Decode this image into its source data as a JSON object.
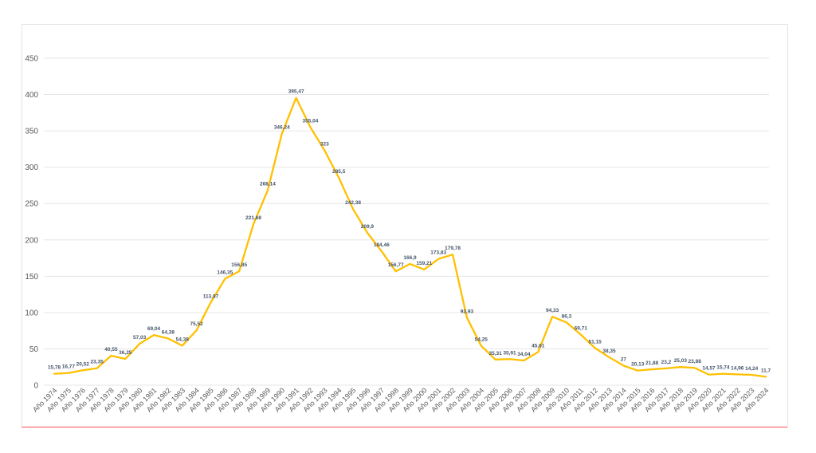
{
  "chart_data": {
    "type": "line",
    "categories": [
      "Año 1974",
      "Año 1975",
      "Año 1976",
      "Año 1977",
      "Año 1978",
      "Año 1979",
      "Año 1980",
      "Año 1981",
      "Año 1982",
      "Año 1983",
      "Año 1984",
      "Año 1985",
      "Año 1986",
      "Año 1987",
      "Año 1988",
      "Año 1989",
      "Año 1990",
      "Año 1991",
      "Año 1992",
      "Año 1993",
      "Año 1994",
      "Año 1995",
      "Año 1996",
      "Año 1997",
      "Año 1998",
      "Año 1999",
      "Año 2000",
      "Año 2001",
      "Año 2002",
      "Año 2003",
      "Año 2004",
      "Año 2005",
      "Año 2006",
      "Año 2007",
      "Año 2008",
      "Año 2009",
      "Año 2010",
      "Año 2011",
      "Año 2012",
      "Año 2013",
      "Año 2014",
      "Año 2015",
      "Año 2016",
      "Año 2017",
      "Año 2018",
      "Año 2019",
      "Año 2020",
      "Año 2021",
      "Año 2022",
      "Año 2023",
      "Año 2024"
    ],
    "series": [
      {
        "values": [
          15.78,
          16.77,
          20.52,
          23.35,
          40.55,
          36.25,
          57.03,
          69.04,
          64.38,
          54.38,
          75.52,
          113.87,
          146.35,
          156.85,
          221.68,
          268.14,
          346.24,
          395.47,
          355.04,
          323,
          285.5,
          242.38,
          209.9,
          184.46,
          156.77,
          166.9,
          159.21,
          173.83,
          179.78,
          92.93,
          54.25,
          35.31,
          35.91,
          34.04,
          45.61,
          94.33,
          86.3,
          69.71,
          51.15,
          38.35,
          27,
          20.13,
          21.88,
          23.2,
          25.03,
          23.88,
          14.57,
          15.74,
          14.96,
          14.24,
          11.7
        ],
        "labels": [
          "15,78",
          "16,77",
          "20,52",
          "23,35",
          "40,55",
          "36,25",
          "57,03",
          "69,04",
          "64,38",
          "54,38",
          "75,52",
          "113,87",
          "146,35",
          "156,85",
          "221,68",
          "268,14",
          "346,24",
          "395,47",
          "355,04",
          "323",
          "285,5",
          "242,38",
          "209,9",
          "184,46",
          "156,77",
          "166,9",
          "159,21",
          "173,83",
          "179,78",
          "92,93",
          "54,25",
          "35,31",
          "35,91",
          "34,04",
          "45,61",
          "94,33",
          "86,3",
          "69,71",
          "51,15",
          "38,35",
          "27",
          "20,13",
          "21,88",
          "23,2",
          "25,03",
          "23,88",
          "14,57",
          "15,74",
          "14,96",
          "14,24",
          "11,7"
        ]
      }
    ],
    "yticks": [
      "0",
      "50",
      "100",
      "150",
      "200",
      "250",
      "300",
      "350",
      "400",
      "450"
    ],
    "ylim": [
      0,
      450
    ],
    "grid": true,
    "title": "",
    "xlabel": "",
    "ylabel": "",
    "line_color": "#ffc000",
    "grid_color": "#e6e6e6"
  }
}
